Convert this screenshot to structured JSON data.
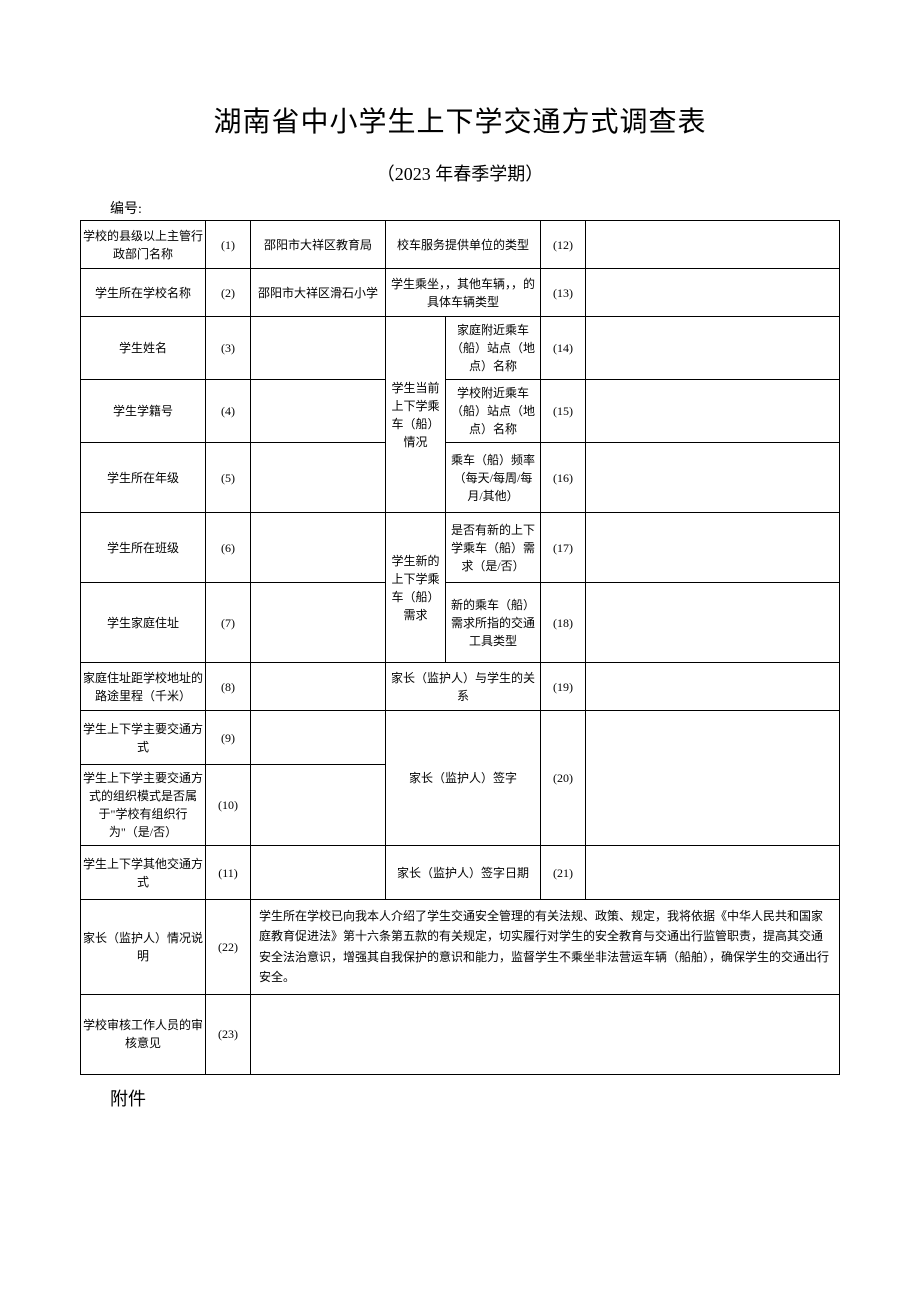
{
  "title": "湖南省中小学生上下学交通方式调查表",
  "subtitle": "（2023 年春季学期）",
  "serial_label": "编号:",
  "appendix": "附件",
  "rows": {
    "r1": {
      "label": "学校的县级以上主管行政部门名称",
      "num": "(1)",
      "val": "邵阳市大祥区教育局"
    },
    "r2": {
      "label": "学生所在学校名称",
      "num": "(2)",
      "val": "邵阳市大祥区滑石小学"
    },
    "r3": {
      "label": "学生姓名",
      "num": "(3)",
      "val": ""
    },
    "r4": {
      "label": "学生学籍号",
      "num": "(4)",
      "val": ""
    },
    "r5": {
      "label": "学生所在年级",
      "num": "(5)",
      "val": ""
    },
    "r6": {
      "label": "学生所在班级",
      "num": "(6)",
      "val": ""
    },
    "r7": {
      "label": "学生家庭住址",
      "num": "(7)",
      "val": ""
    },
    "r8": {
      "label": "家庭住址距学校地址的路途里程（千米）",
      "num": "(8)",
      "val": ""
    },
    "r9": {
      "label": "学生上下学主要交通方式",
      "num": "(9)",
      "val": ""
    },
    "r10": {
      "label": "学生上下学主要交通方式的组织模式是否属于\"学校有组织行为\"（是/否）",
      "num": "(10)",
      "val": ""
    },
    "r11": {
      "label": "学生上下学其他交通方式",
      "num": "(11)",
      "val": ""
    },
    "r22": {
      "label": "家长（监护人）情况说明",
      "num": "(22)"
    },
    "r23": {
      "label": "学校审核工作人员的审核意见",
      "num": "(23)",
      "val": ""
    }
  },
  "right": {
    "r12": {
      "label": "校车服务提供单位的类型",
      "num": "(12)",
      "val": ""
    },
    "r13": {
      "label": "学生乘坐，，其他车辆，，的具体车辆类型",
      "num": "(13)",
      "val": ""
    },
    "group1_label": "学生当前上下学乘车（船）情况",
    "r14": {
      "label": "家庭附近乘车（船）站点（地点）名称",
      "num": "(14)",
      "val": ""
    },
    "r15": {
      "label": "学校附近乘车（船）站点（地点）名称",
      "num": "(15)",
      "val": ""
    },
    "r16": {
      "label": "乘车（船）频率（每天/每周/每月/其他）",
      "num": "(16)",
      "val": ""
    },
    "group2_label": "学生新的上下学乘车（船）需求",
    "r17": {
      "label": "是否有新的上下学乘车（船）需求（是/否）",
      "num": "(17)",
      "val": ""
    },
    "r18": {
      "label": "新的乘车（船）需求所指的交通工具类型",
      "num": "(18)",
      "val": ""
    },
    "r19": {
      "label": "家长（监护人）与学生的关系",
      "num": "(19)",
      "val": ""
    },
    "r20": {
      "label": "家长（监护人）签字",
      "num": "(20)",
      "val": ""
    },
    "r21": {
      "label": "家长（监护人）签字日期",
      "num": "(21)",
      "val": ""
    }
  },
  "description": "学生所在学校已向我本人介绍了学生交通安全管理的有关法规、政策、规定，我将依据《中华人民共和国家庭教育促进法》第十六条第五款的有关规定，切实履行对学生的安全教育与交通出行监管职责，提高其交通安全法治意识，增强其自我保护的意识和能力，监督学生不乘坐非法营运车辆（船舶），确保学生的交通出行安全。",
  "colors": {
    "border": "#000000",
    "background": "#ffffff",
    "text": "#000000"
  },
  "fonts": {
    "title_size": 28,
    "subtitle_size": 18,
    "body_size": 12
  }
}
